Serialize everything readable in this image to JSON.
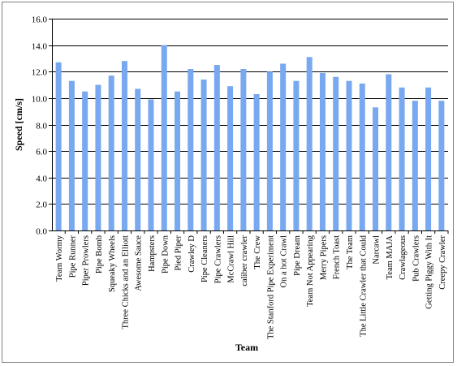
{
  "chart_data": {
    "type": "bar",
    "title": "",
    "xlabel": "Team",
    "ylabel": "Speed [cm/s]",
    "ylim": [
      0,
      16
    ],
    "yticks": [
      "0.0",
      "2.0",
      "4.0",
      "6.0",
      "8.0",
      "10.0",
      "12.0",
      "14.0",
      "16.0"
    ],
    "grid": true,
    "legend": "none",
    "bar_color": "#78A8F0",
    "categories": [
      "Team Wormy",
      "Pipe Runner",
      "Piper Prowlers",
      "Pipe Bomb",
      "Squeaky Wheels",
      "Three Chicks and an Elliott",
      "Awesome Sauce",
      "Hampsters",
      "Pipe Down",
      "Pied Piper",
      "Crawley D",
      "Pipe Cleaners",
      "Pipe Crawlers",
      "McCrawl Hill",
      "caliber crawler",
      "The Crew",
      "The Stanford Pipe Experiment",
      "On a hot Crawl",
      "Pipe Dream",
      "Team Not Appearing",
      "Merry Pipers",
      "French Toast",
      "The Team",
      "The Little Crawler that Could",
      "Narcawl",
      "Team MAJA",
      "Crawlageous",
      "Pub Crawlers",
      "Getting Piggy With It",
      "Creepy Crawler"
    ],
    "values": [
      12.7,
      11.3,
      10.5,
      11.0,
      11.7,
      12.8,
      10.7,
      9.9,
      14.0,
      10.5,
      12.2,
      11.4,
      12.5,
      10.9,
      12.2,
      10.3,
      12.0,
      12.6,
      11.3,
      13.1,
      11.9,
      11.6,
      11.3,
      11.1,
      9.3,
      11.8,
      10.8,
      9.8,
      10.8,
      9.8
    ]
  }
}
